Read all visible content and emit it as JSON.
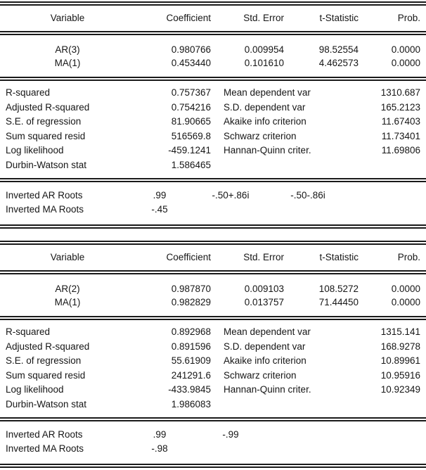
{
  "colors": {
    "text": "#161616",
    "rule": "#1a1a1a",
    "background": "#ffffff"
  },
  "tables": [
    {
      "header": {
        "variable": "Variable",
        "coefficient": "Coefficient",
        "std_error": "Std. Error",
        "t_statistic": "t-Statistic",
        "prob": "Prob."
      },
      "coefficients": [
        {
          "variable": "AR(3)",
          "coefficient": "0.980766",
          "std_error": "0.009954",
          "t_statistic": "98.52554",
          "prob": "0.0000"
        },
        {
          "variable": "MA(1)",
          "coefficient": "0.453440",
          "std_error": "0.101610",
          "t_statistic": "4.462573",
          "prob": "0.0000"
        }
      ],
      "stats": [
        {
          "left_label": "R-squared",
          "left_value": "0.757367",
          "right_label": "Mean dependent var",
          "right_value": "1310.687"
        },
        {
          "left_label": "Adjusted R-squared",
          "left_value": "0.754216",
          "right_label": "S.D. dependent var",
          "right_value": "165.2123"
        },
        {
          "left_label": "S.E. of regression",
          "left_value": "81.90665",
          "right_label": "Akaike info criterion",
          "right_value": "11.67403"
        },
        {
          "left_label": "Sum squared resid",
          "left_value": "516569.8",
          "right_label": "Schwarz criterion",
          "right_value": "11.73401"
        },
        {
          "left_label": "Log likelihood",
          "left_value": "-459.1241",
          "right_label": "Hannan-Quinn criter.",
          "right_value": "11.69806"
        },
        {
          "left_label": "Durbin-Watson stat",
          "left_value": "1.586465",
          "right_label": "",
          "right_value": ""
        }
      ],
      "roots": [
        {
          "label": "Inverted AR Roots",
          "values": [
            ".99",
            "-.50+.86i",
            "-.50-.86i"
          ]
        },
        {
          "label": "Inverted MA Roots",
          "values": [
            "-.45",
            "",
            ""
          ]
        }
      ]
    },
    {
      "header": {
        "variable": "Variable",
        "coefficient": "Coefficient",
        "std_error": "Std. Error",
        "t_statistic": "t-Statistic",
        "prob": "Prob."
      },
      "coefficients": [
        {
          "variable": "AR(2)",
          "coefficient": "0.987870",
          "std_error": "0.009103",
          "t_statistic": "108.5272",
          "prob": "0.0000"
        },
        {
          "variable": "MA(1)",
          "coefficient": "0.982829",
          "std_error": "0.013757",
          "t_statistic": "71.44450",
          "prob": "0.0000"
        }
      ],
      "stats": [
        {
          "left_label": "R-squared",
          "left_value": "0.892968",
          "right_label": "Mean dependent var",
          "right_value": "1315.141"
        },
        {
          "left_label": "Adjusted R-squared",
          "left_value": "0.891596",
          "right_label": "S.D. dependent var",
          "right_value": "168.9278"
        },
        {
          "left_label": "S.E. of regression",
          "left_value": "55.61909",
          "right_label": "Akaike info criterion",
          "right_value": "10.89961"
        },
        {
          "left_label": "Sum squared resid",
          "left_value": "241291.6",
          "right_label": "Schwarz criterion",
          "right_value": "10.95916"
        },
        {
          "left_label": "Log likelihood",
          "left_value": "-433.9845",
          "right_label": "Hannan-Quinn criter.",
          "right_value": "10.92349"
        },
        {
          "left_label": "Durbin-Watson stat",
          "left_value": "1.986083",
          "right_label": "",
          "right_value": ""
        }
      ],
      "roots": [
        {
          "label": "Inverted AR Roots",
          "values": [
            ".99",
            "-.99",
            ""
          ]
        },
        {
          "label": "Inverted MA Roots",
          "values": [
            "-.98",
            "",
            ""
          ]
        }
      ]
    }
  ]
}
